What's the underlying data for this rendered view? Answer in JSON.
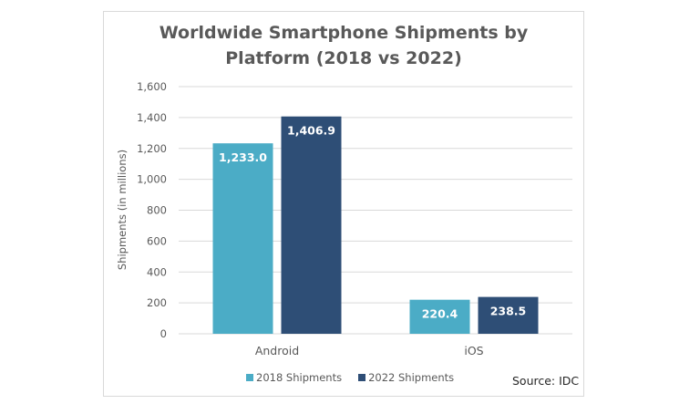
{
  "chart_data": {
    "type": "bar",
    "title": "Worldwide Smartphone Shipments by Platform (2018 vs 2022)",
    "title_lines": [
      "Worldwide Smartphone Shipments by",
      "Platform (2018 vs 2022)"
    ],
    "xlabel": "",
    "ylabel": "Shipments (in millions)",
    "ylim": [
      0,
      1600
    ],
    "yticks": [
      0,
      200,
      400,
      600,
      800,
      1000,
      1200,
      1400,
      1600
    ],
    "ytick_labels": [
      "0",
      "200",
      "400",
      "600",
      "800",
      "1,000",
      "1,200",
      "1,400",
      "1,600"
    ],
    "grid": true,
    "categories": [
      "Android",
      "iOS"
    ],
    "series": [
      {
        "name": "2018 Shipments",
        "color": "#4BACC6",
        "values": [
          1233.0,
          220.4
        ],
        "labels": [
          "1,233.0",
          "220.4"
        ]
      },
      {
        "name": "2022 Shipments",
        "color": "#2E4E76",
        "values": [
          1406.9,
          238.5
        ],
        "labels": [
          "1,406.9",
          "238.5"
        ]
      }
    ],
    "legend_position": "bottom",
    "annotation": "Source: IDC"
  }
}
